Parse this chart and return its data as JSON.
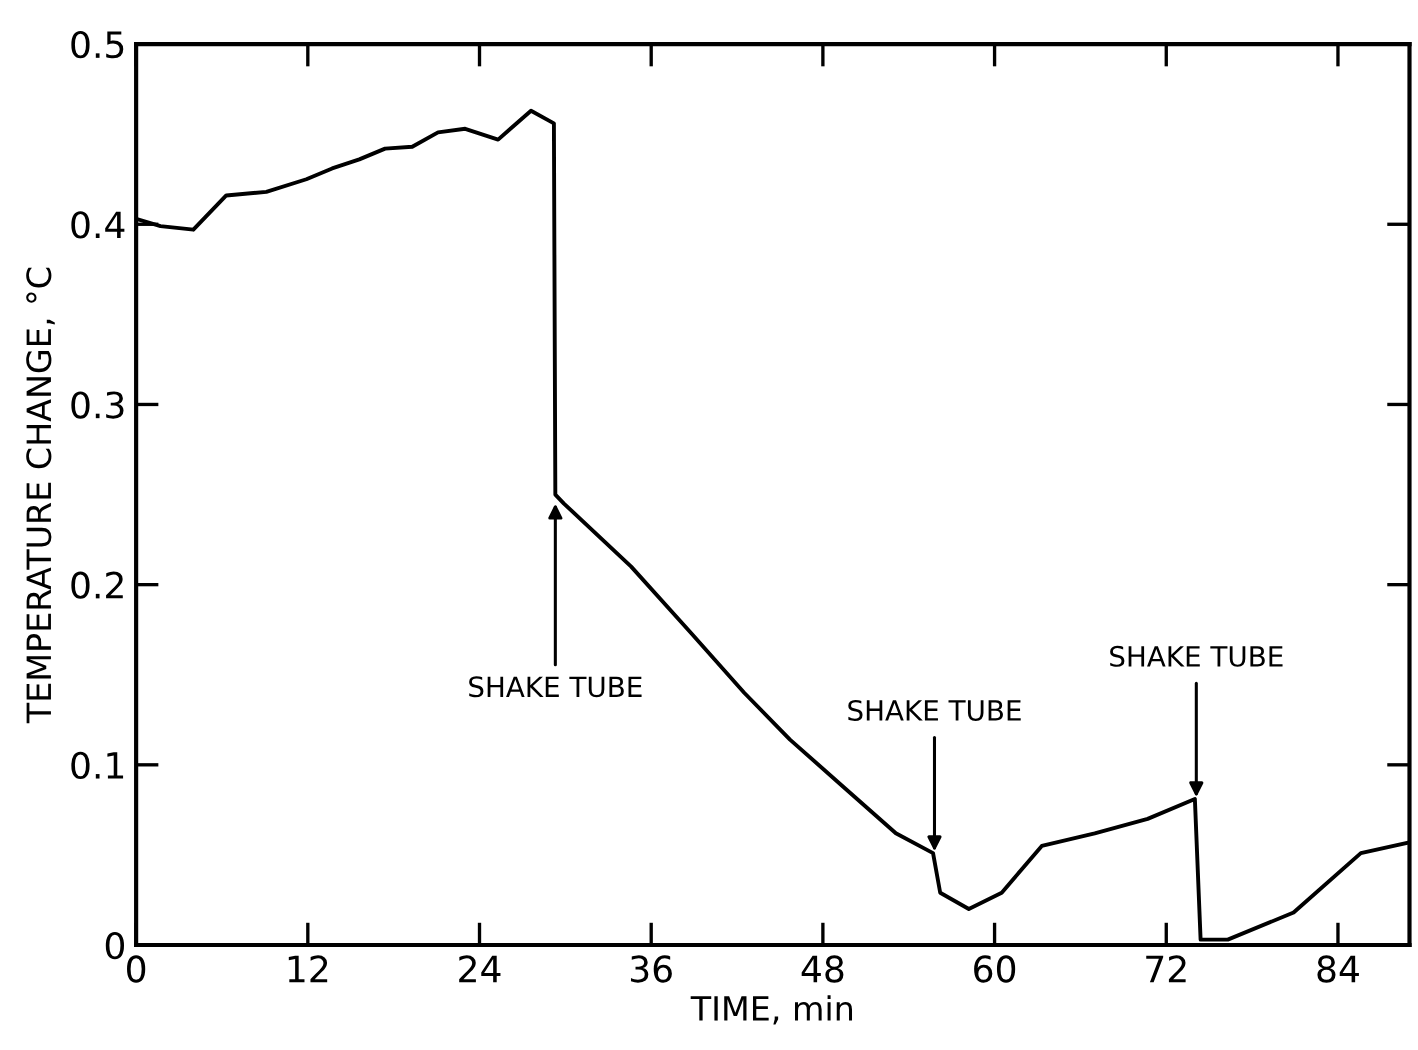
{
  "chart_data": {
    "type": "line",
    "xlabel": "TIME, min",
    "ylabel": "TEMPERATURE CHANGE, °C",
    "xlim": [
      0,
      89
    ],
    "ylim": [
      0,
      0.5
    ],
    "xticks": [
      0,
      12,
      24,
      36,
      48,
      60,
      72,
      84
    ],
    "yticks": [
      0,
      0.1,
      0.2,
      0.3,
      0.4,
      0.5
    ],
    "grid": false,
    "series": [
      {
        "color": "#000000",
        "x": [
          0,
          1.7,
          4.0,
          6.3,
          9.1,
          11.9,
          13.7,
          15.6,
          17.4,
          19.3,
          21.1,
          23.0,
          25.3,
          27.6,
          29.2,
          29.3,
          29.9,
          34.6,
          38.8,
          42.5,
          45.7,
          49.4,
          53.1,
          55.7,
          56.2,
          58.2,
          60.5,
          63.3,
          67.0,
          70.7,
          74.0,
          74.4,
          76.3,
          80.9,
          85.6,
          89.0
        ],
        "values": [
          0.403,
          0.399,
          0.397,
          0.416,
          0.418,
          0.425,
          0.431,
          0.436,
          0.442,
          0.443,
          0.451,
          0.453,
          0.447,
          0.463,
          0.456,
          0.25,
          0.245,
          0.21,
          0.173,
          0.14,
          0.114,
          0.088,
          0.062,
          0.051,
          0.029,
          0.02,
          0.029,
          0.055,
          0.062,
          0.07,
          0.081,
          0.003,
          0.003,
          0.018,
          0.051,
          0.057
        ]
      }
    ],
    "annotations": [
      {
        "text": "SHAKE TUBE",
        "x": 29.3,
        "y": 0.245
      },
      {
        "text": "SHAKE TUBE",
        "x": 55.8,
        "y": 0.052
      },
      {
        "text": "SHAKE TUBE",
        "x": 74.1,
        "y": 0.082
      }
    ]
  }
}
